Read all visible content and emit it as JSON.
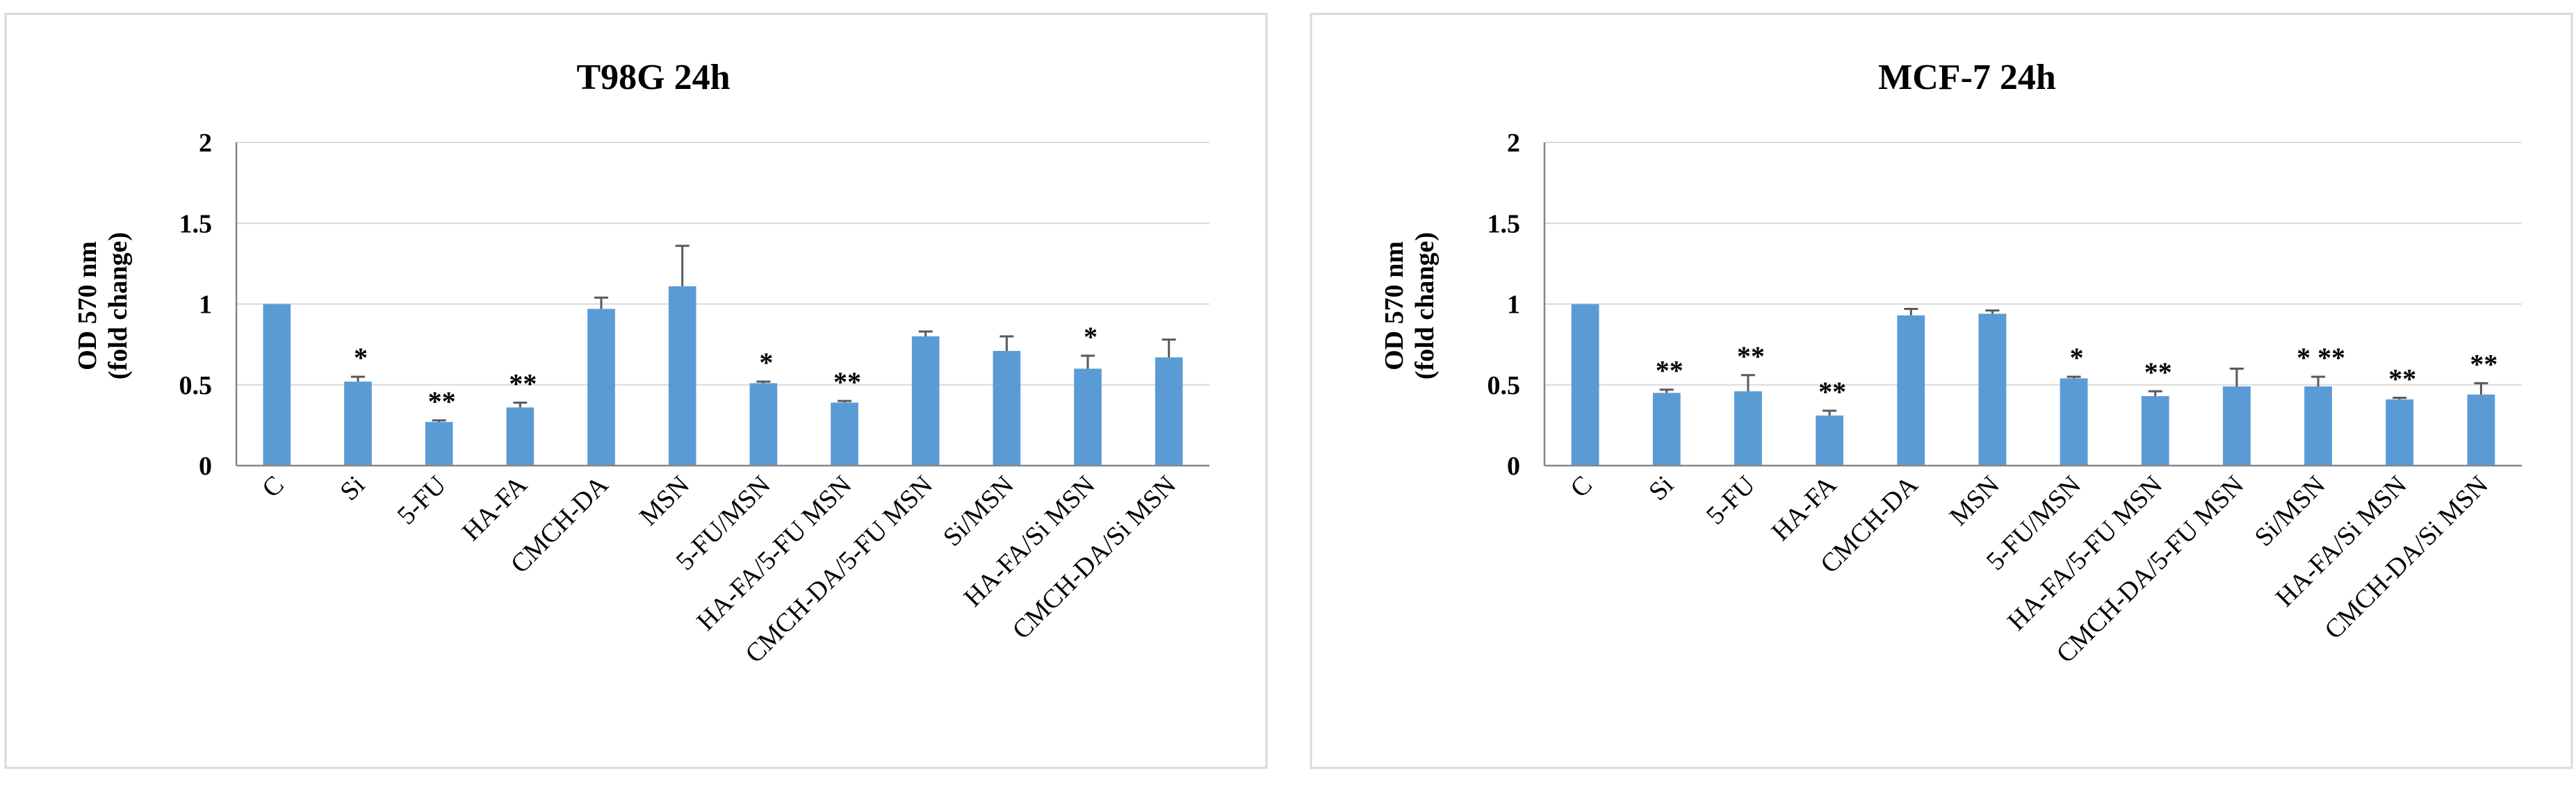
{
  "chart_data": [
    {
      "type": "bar",
      "title": "T98G 24h",
      "ylabel_line1": "OD 570 nm",
      "ylabel_line2": "(fold change)",
      "xlabel": "",
      "ylim": [
        0,
        2
      ],
      "yticks": [
        "0",
        "0.5",
        "1",
        "1.5",
        "2"
      ],
      "grid": true,
      "categories": [
        "C",
        "Si",
        "5-FU",
        "HA-FA",
        "CMCH-DA",
        "MSN",
        "5-FU/MSN",
        "HA-FA/5-FU MSN",
        "CMCH-DA/5-FU MSN",
        "Si/MSN",
        "HA-FA/Si MSN",
        "CMCH-DA/Si MSN"
      ],
      "values": [
        1.0,
        0.52,
        0.27,
        0.36,
        0.97,
        1.11,
        0.51,
        0.39,
        0.8,
        0.71,
        0.6,
        0.67
      ],
      "errors": [
        0.0,
        0.03,
        0.01,
        0.03,
        0.07,
        0.25,
        0.01,
        0.01,
        0.03,
        0.09,
        0.08,
        0.11
      ],
      "significance": [
        "",
        "*",
        "**",
        "**",
        "",
        "",
        "*",
        "**",
        "",
        "",
        "*",
        ""
      ]
    },
    {
      "type": "bar",
      "title": "MCF-7 24h",
      "ylabel_line1": "OD 570 nm",
      "ylabel_line2": "(fold change)",
      "xlabel": "",
      "ylim": [
        0,
        2
      ],
      "yticks": [
        "0",
        "0.5",
        "1",
        "1.5",
        "2"
      ],
      "grid": true,
      "categories": [
        "C",
        "Si",
        "5-FU",
        "HA-FA",
        "CMCH-DA",
        "MSN",
        "5-FU/MSN",
        "HA-FA/5-FU MSN",
        "CMCH-DA/5-FU MSN",
        "Si/MSN",
        "HA-FA/Si MSN",
        "CMCH-DA/Si MSN"
      ],
      "values": [
        1.0,
        0.45,
        0.46,
        0.31,
        0.93,
        0.94,
        0.54,
        0.43,
        0.49,
        0.49,
        0.41,
        0.44
      ],
      "errors": [
        0.0,
        0.02,
        0.1,
        0.03,
        0.04,
        0.02,
        0.01,
        0.03,
        0.11,
        0.06,
        0.01,
        0.07
      ],
      "significance": [
        "",
        "**",
        "**",
        "**",
        "",
        "",
        "*",
        "**",
        "",
        "*  **",
        "**",
        "**"
      ]
    }
  ]
}
